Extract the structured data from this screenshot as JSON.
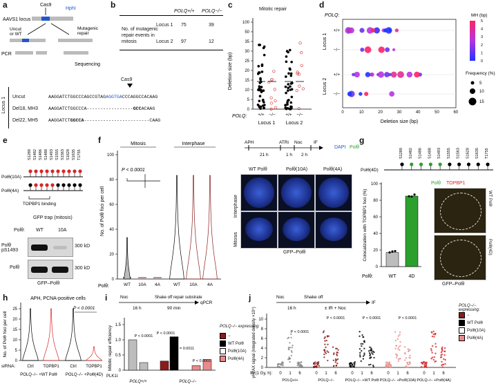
{
  "panels": {
    "a": {
      "label": "a",
      "locus": "AAVS1 locus",
      "cas9": "Cas9",
      "hphi": "HphI",
      "uncut_or_wt": "Uncut or WT",
      "mutagenic": "Mutagenic repair",
      "pcr": "PCR",
      "sequencing": "Sequencing",
      "cas9_marker": "Cas9",
      "locus1": "Locus 1",
      "seqs": [
        {
          "name": "Uncut",
          "prefix": "AAGGATCTGGCCCAGCCGTAG",
          "blue": "AGGTGA",
          "suffix": "CCCAGGCCACAAG"
        },
        {
          "name": "Del18, MH3",
          "prefix": "AAGGATCTGGCCCA",
          "dash": "-----------------",
          "bold": "GCC",
          "suffix": "ACAAG"
        },
        {
          "name": "Del22, MH5",
          "prefix": "AAGGATCT",
          "bold": "GGCCA",
          "dash": "------------------------",
          "suffix": "CAAG"
        }
      ]
    },
    "b": {
      "label": "b",
      "col1": "POLQ+/+",
      "col2": "POLQ−/−",
      "row_label": "No. of mutagenic repair events in mitosis",
      "rows": [
        {
          "locus": "Locus 1",
          "wt": "75",
          "ko": "39"
        },
        {
          "locus": "Locus 2",
          "wt": "97",
          "ko": "12"
        }
      ]
    },
    "c": {
      "label": "c",
      "title": "Mitotic repair",
      "ylabel": "Deletion size (bp)",
      "yticks": [
        "0",
        "5",
        "10",
        "15",
        "20",
        "25",
        "30",
        "35",
        "50",
        "100"
      ],
      "xgeno": [
        "+/+",
        "−/−",
        "+/+",
        "−/−"
      ],
      "polq": "POLQ:",
      "loci": [
        "Locus 1",
        "Locus 2"
      ]
    },
    "d": {
      "label": "d",
      "polq": "POLQ:",
      "xlabel": "Deletion size (bp)",
      "xticks": [
        "0",
        "10",
        "20",
        "30",
        "40",
        "50",
        "60"
      ],
      "rows": [
        "+/+",
        "−/−",
        "+/+",
        "−/−"
      ],
      "loci": [
        "Locus 1",
        "Locus 2"
      ],
      "mh_title": "MH (bp)",
      "mh_ticks": [
        "0",
        "1",
        "2",
        "3",
        "4",
        "5"
      ],
      "freq_title": "Frequency (%)",
      "freq": [
        "5",
        "10",
        "15"
      ]
    },
    "e": {
      "label": "e",
      "sites": [
        "S1289",
        "S1482",
        "S1486",
        "S1488",
        "S1493",
        "S1555",
        "S1563",
        "S1628",
        "S1635",
        "T1755"
      ],
      "wt10a": "Polθ(10A)",
      "wt4a": "Polθ(4A)",
      "topbp1": "TOPBP1 binding",
      "gfptrap": "GFP trap (mitosis)",
      "poltheta": "Polθ:",
      "wt": "WT",
      "m10a": "10A",
      "blot1": "Polθ pS1493",
      "blot2": "Polθ",
      "kd1": "300 kD",
      "kd2": "300 kD",
      "foot": "GFP–Polθ"
    },
    "f": {
      "label": "f",
      "mitosis": "Mitosis",
      "interphase": "Interphase",
      "pval": "P < 0.0001",
      "ylabel": "No. of Polθ foci per cell",
      "yticks": [
        "0",
        "20",
        "40",
        "60",
        "80",
        "100"
      ],
      "xcats": [
        "WT",
        "10A",
        "4A",
        "WT",
        "10A",
        "4A"
      ],
      "poltheta": "Polθ:",
      "timeline": [
        "APH",
        "21 h",
        "ATRi",
        "1 h",
        "Noc",
        "2 h",
        "IF"
      ],
      "legend": [
        "DAPI",
        "Polθ"
      ],
      "img_cols": [
        "WT Polθ",
        "Polθ(10A)",
        "Polθ(4A)"
      ],
      "img_rows": [
        "Interphase",
        "Mitosis"
      ],
      "foot": "GFP–Polθ"
    },
    "g": {
      "label": "g",
      "sites": [
        "S1289",
        "S1482",
        "S1486",
        "S1488",
        "S1493",
        "S1555",
        "S1563",
        "S1628",
        "S1635",
        "T1755"
      ],
      "construct": "Polθ(4D)",
      "ylabel": "Colocalization with TOPBP1 foci (%)",
      "yticks": [
        "0",
        "20",
        "40",
        "60",
        "80",
        "100"
      ],
      "xcats": [
        "WT",
        "4D"
      ],
      "poltheta": "Polθ:",
      "legend": [
        "Polθ",
        "TOPBP1"
      ],
      "img_rows": [
        "WT Polθ",
        "Polθ(4D)"
      ],
      "foot": "GFP–Polθ"
    },
    "h": {
      "label": "h",
      "title": "APH, PCNA-positive cells",
      "pval": "P < 0.0001",
      "ylabel": "No. of Polθ foci per cell",
      "yticks": [
        "0",
        "5",
        "10",
        "15",
        "20",
        "25"
      ],
      "sirna": "siRNA:",
      "xcats": [
        "Ctrl",
        "TOPBP1",
        "Ctrl",
        "TOPBP1"
      ],
      "groups": [
        "POLQ−/− +WT Polθ",
        "POLQ−/− +Polθ(4D)"
      ]
    },
    "i": {
      "label": "i",
      "timeline": [
        "Noc",
        "16 h",
        "Shake off repair substrate",
        "90 min",
        "qPCR"
      ],
      "ylabel": "Mitotic repair efficiency",
      "yticks": [
        "0",
        "0.5",
        "1.0",
        "1.5"
      ],
      "pvals": [
        "P < 0.0001",
        "P < 0.0001",
        "P = 0.0011",
        "P < 0.0001"
      ],
      "plk1": "PLK1i:",
      "polq_label": "POLQ−/−",
      "polq_wt": "POLQ+/+",
      "poltheta": "Polθ:",
      "xcats": [
        "WT",
        "10A",
        "4A"
      ],
      "legend_title": "POLQ−/− expressing:",
      "legend": [
        "−",
        "WT Polθ",
        "Polθ(10A)",
        "Polθ(4A)"
      ],
      "colors": [
        "#8b1a1a",
        "#000000",
        "#ffffff",
        "#e98b8b"
      ]
    },
    "j": {
      "label": "j",
      "timeline": [
        "Noc",
        "16 h",
        "Shake off",
        "± IR + Noc",
        "IF"
      ],
      "ylabel": "γH2AX signal (integrated density ×10⁶)",
      "yticks": [
        "0",
        "2",
        "4",
        "6",
        "8",
        "10"
      ],
      "pvals": [
        "P < 0.0001",
        "P < 0.0001",
        "P < 0.0001",
        "P < 0.0001"
      ],
      "ir": "IR (1 Gy, h):",
      "irvals": [
        "0",
        "1",
        "6"
      ],
      "groups": [
        "POLQ+/+",
        "POLQ−/−",
        "POLQ−/− +WT Polθ",
        "POLQ−/− +Polθ(10A)",
        "POLQ−/− +Polθ(4A)"
      ],
      "legend_title": "POLQ−/− expressing:",
      "legend": [
        "−",
        "WT Polθ",
        "Polθ(10A)",
        "Polθ(4A)"
      ]
    }
  },
  "colors": {
    "red": "#d62728",
    "darkred": "#8b1a1a",
    "green": "#2ca02c",
    "blue": "#2255cc",
    "pink": "#e98b8b"
  }
}
